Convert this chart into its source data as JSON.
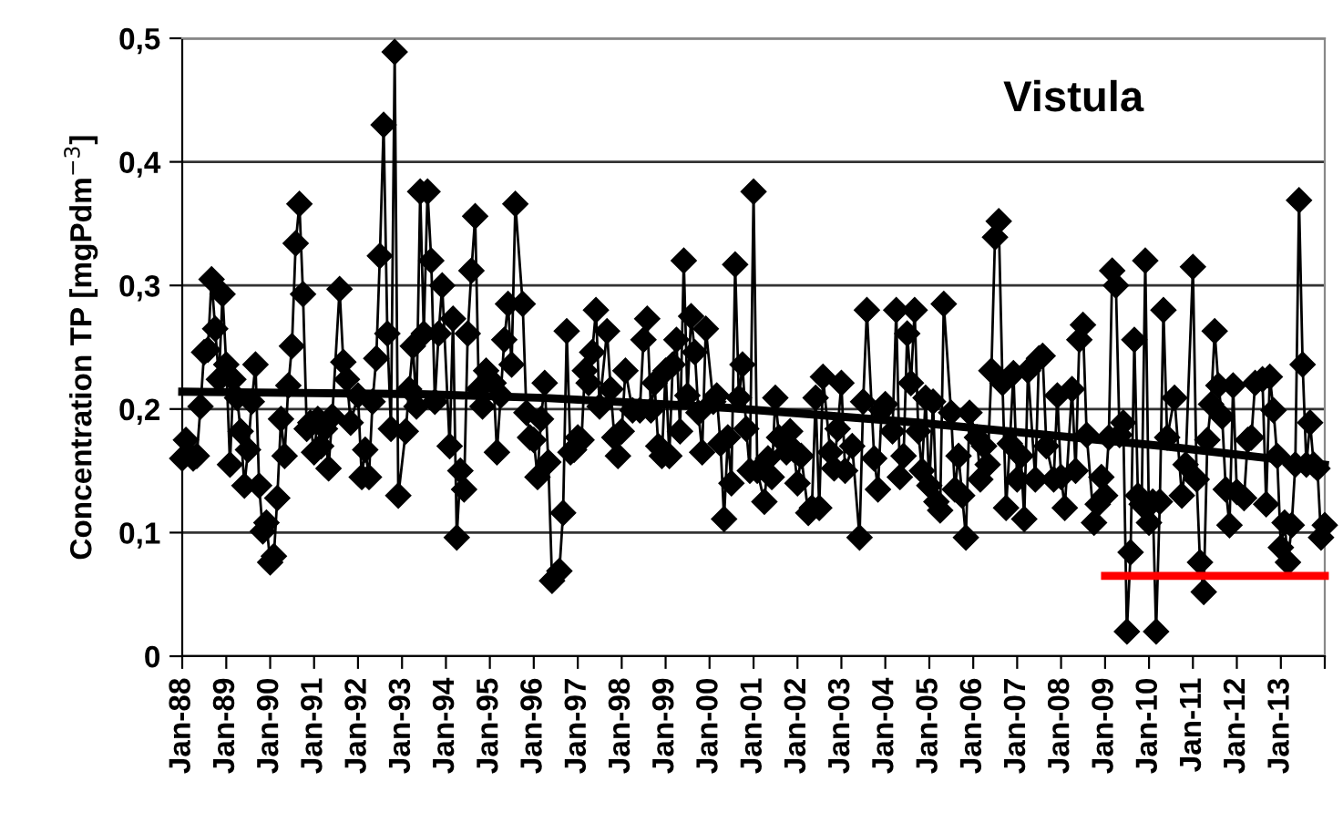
{
  "chart_data": {
    "type": "line",
    "title": "Vistula",
    "ylabel": "Concentration TP [mgPdm$^{−3}$]",
    "xlim": [
      "1988-01",
      "2014-01"
    ],
    "xticks": [
      {
        "value": "1988-01",
        "label": "Jan-88"
      },
      {
        "value": "1989-01",
        "label": "Jan-89"
      },
      {
        "value": "1990-01",
        "label": "Jan-90"
      },
      {
        "value": "1991-01",
        "label": "Jan-91"
      },
      {
        "value": "1992-01",
        "label": "Jan-92"
      },
      {
        "value": "1993-01",
        "label": "Jan-93"
      },
      {
        "value": "1994-01",
        "label": "Jan-94"
      },
      {
        "value": "1995-01",
        "label": "Jan-95"
      },
      {
        "value": "1996-01",
        "label": "Jan-96"
      },
      {
        "value": "1997-01",
        "label": "Jan-97"
      },
      {
        "value": "1998-01",
        "label": "Jan-98"
      },
      {
        "value": "1999-01",
        "label": "Jan-99"
      },
      {
        "value": "2000-01",
        "label": "Jan-00"
      },
      {
        "value": "2001-01",
        "label": "Jan-01"
      },
      {
        "value": "2002-01",
        "label": "Jan-02"
      },
      {
        "value": "2003-01",
        "label": "Jan-03"
      },
      {
        "value": "2004-01",
        "label": "Jan-04"
      },
      {
        "value": "2005-01",
        "label": "Jan-05"
      },
      {
        "value": "2006-01",
        "label": "Jan-06"
      },
      {
        "value": "2007-01",
        "label": "Jan-07"
      },
      {
        "value": "2008-01",
        "label": "Jan-08"
      },
      {
        "value": "2009-01",
        "label": "Jan-09"
      },
      {
        "value": "2010-01",
        "label": "Jan-10"
      },
      {
        "value": "2011-01",
        "label": "Jan-11"
      },
      {
        "value": "2012-01",
        "label": "Jan-12"
      },
      {
        "value": "2013-01",
        "label": "Jan-13"
      },
      {
        "value": "2014-01",
        "label": null
      }
    ],
    "ylim": [
      0,
      0.5
    ],
    "yticks": [
      0,
      {
        "value": 0.1,
        "label": "0,1"
      },
      {
        "value": 0.2,
        "label": "0,2"
      },
      {
        "value": 0.3,
        "label": "0,3"
      },
      {
        "value": 0.4,
        "label": "0,4"
      },
      {
        "value": 0.5,
        "label": "0,5"
      }
    ],
    "grid": "y",
    "legend": false,
    "series": [
      {
        "color": "#000000",
        "marker": "diamond",
        "line_style": "solid",
        "x": [
          "1988-01",
          "1988-02",
          "1988-04",
          "1988-05",
          "1988-06",
          "1988-07",
          "1988-08",
          "1988-09",
          "1988-10",
          "1988-11",
          "1988-12",
          "1989-01",
          "1989-02",
          "1989-03",
          "1989-04",
          "1989-05",
          "1989-06",
          "1989-07",
          "1989-08",
          "1989-09",
          "1989-10",
          "1989-11",
          "1989-12",
          "1990-01",
          "1990-02",
          "1990-03",
          "1990-04",
          "1990-05",
          "1990-06",
          "1990-07",
          "1990-08",
          "1990-09",
          "1990-10",
          "1990-11",
          "1990-12",
          "1991-01",
          "1991-02",
          "1991-03",
          "1991-04",
          "1991-05",
          "1991-06",
          "1991-08",
          "1991-09",
          "1991-10",
          "1991-11",
          "1992-01",
          "1992-02",
          "1992-03",
          "1992-04",
          "1992-05",
          "1992-06",
          "1992-07",
          "1992-08",
          "1992-09",
          "1992-10",
          "1992-11",
          "1992-12",
          "1993-02",
          "1993-03",
          "1993-04",
          "1993-05",
          "1993-06",
          "1993-07",
          "1993-08",
          "1993-09",
          "1993-10",
          "1993-11",
          "1993-12",
          "1994-02",
          "1994-03",
          "1994-04",
          "1994-05",
          "1994-06",
          "1994-07",
          "1994-08",
          "1994-09",
          "1994-10",
          "1994-11",
          "1994-12",
          "1995-02",
          "1995-03",
          "1995-04",
          "1995-05",
          "1995-06",
          "1995-07",
          "1995-08",
          "1995-10",
          "1995-11",
          "1995-12",
          "1996-01",
          "1996-02",
          "1996-03",
          "1996-04",
          "1996-05",
          "1996-06",
          "1996-08",
          "1996-09",
          "1996-10",
          "1996-11",
          "1996-12",
          "1997-01",
          "1997-02",
          "1997-03",
          "1997-04",
          "1997-05",
          "1997-06",
          "1997-07",
          "1997-09",
          "1997-10",
          "1997-11",
          "1997-12",
          "1998-01",
          "1998-02",
          "1998-04",
          "1998-06",
          "1998-07",
          "1998-08",
          "1998-09",
          "1998-10",
          "1998-11",
          "1998-12",
          "1999-01",
          "1999-02",
          "1999-03",
          "1999-04",
          "1999-05",
          "1999-06",
          "1999-07",
          "1999-08",
          "1999-09",
          "1999-10",
          "1999-11",
          "1999-12",
          "2000-02",
          "2000-03",
          "2000-04",
          "2000-05",
          "2000-06",
          "2000-07",
          "2000-08",
          "2000-09",
          "2000-10",
          "2000-11",
          "2000-12",
          "2001-01",
          "2001-02",
          "2001-04",
          "2001-05",
          "2001-06",
          "2001-07",
          "2001-08",
          "2001-10",
          "2001-11",
          "2001-12",
          "2002-01",
          "2002-02",
          "2002-04",
          "2002-05",
          "2002-06",
          "2002-07",
          "2002-08",
          "2002-10",
          "2002-11",
          "2002-12",
          "2003-01",
          "2003-02",
          "2003-04",
          "2003-06",
          "2003-07",
          "2003-08",
          "2003-10",
          "2003-11",
          "2003-12",
          "2004-01",
          "2004-03",
          "2004-04",
          "2004-05",
          "2004-06",
          "2004-07",
          "2004-08",
          "2004-09",
          "2004-10",
          "2004-11",
          "2004-12",
          "2005-01",
          "2005-02",
          "2005-03",
          "2005-04",
          "2005-05",
          "2005-07",
          "2005-08",
          "2005-09",
          "2005-10",
          "2005-11",
          "2005-12",
          "2006-02",
          "2006-03",
          "2006-04",
          "2006-05",
          "2006-06",
          "2006-07",
          "2006-08",
          "2006-09",
          "2006-10",
          "2006-11",
          "2006-12",
          "2007-01",
          "2007-02",
          "2007-03",
          "2007-04",
          "2007-06",
          "2007-07",
          "2007-08",
          "2007-09",
          "2007-11",
          "2007-12",
          "2008-01",
          "2008-02",
          "2008-04",
          "2008-05",
          "2008-06",
          "2008-07",
          "2008-08",
          "2008-10",
          "2008-11",
          "2008-12",
          "2009-01",
          "2009-02",
          "2009-03",
          "2009-04",
          "2009-05",
          "2009-06",
          "2009-07",
          "2009-08",
          "2009-09",
          "2009-10",
          "2009-11",
          "2009-12",
          "2010-01",
          "2010-02",
          "2010-03",
          "2010-04",
          "2010-05",
          "2010-06",
          "2010-08",
          "2010-10",
          "2010-11",
          "2011-01",
          "2011-02",
          "2011-03",
          "2011-04",
          "2011-05",
          "2011-06",
          "2011-07",
          "2011-08",
          "2011-09",
          "2011-10",
          "2011-11",
          "2011-12",
          "2012-01",
          "2012-03",
          "2012-04",
          "2012-05",
          "2012-06",
          "2012-08",
          "2012-09",
          "2012-10",
          "2012-11",
          "2012-12",
          "2013-01",
          "2013-02",
          "2013-03",
          "2013-04",
          "2013-05",
          "2013-06",
          "2013-07",
          "2013-08",
          "2013-09",
          "2013-10",
          "2013-11",
          "2013-12",
          "2014-01"
        ],
        "values": [
          0.16,
          0.175,
          0.16,
          0.162,
          0.202,
          0.246,
          0.248,
          0.305,
          0.265,
          0.224,
          0.293,
          0.236,
          0.155,
          0.224,
          0.209,
          0.182,
          0.138,
          0.167,
          0.206,
          0.236,
          0.138,
          0.101,
          0.108,
          0.076,
          0.081,
          0.128,
          0.192,
          0.162,
          0.219,
          0.251,
          0.334,
          0.366,
          0.293,
          0.184,
          0.189,
          0.165,
          0.192,
          0.17,
          0.184,
          0.152,
          0.194,
          0.297,
          0.238,
          0.224,
          0.189,
          0.211,
          0.145,
          0.167,
          0.145,
          0.206,
          0.241,
          0.324,
          0.43,
          0.261,
          0.184,
          0.489,
          0.13,
          0.182,
          0.216,
          0.251,
          0.202,
          0.376,
          0.261,
          0.376,
          0.32,
          0.206,
          0.261,
          0.3,
          0.17,
          0.273,
          0.096,
          0.15,
          0.135,
          0.261,
          0.312,
          0.356,
          0.216,
          0.202,
          0.231,
          0.221,
          0.165,
          0.211,
          0.256,
          0.285,
          0.236,
          0.366,
          0.285,
          0.197,
          0.177,
          0.175,
          0.145,
          0.192,
          0.221,
          0.157,
          0.061,
          0.069,
          0.116,
          0.263,
          0.165,
          0.167,
          0.177,
          0.175,
          0.231,
          0.221,
          0.246,
          0.28,
          0.202,
          0.263,
          0.216,
          0.177,
          0.162,
          0.182,
          0.231,
          0.199,
          0.199,
          0.256,
          0.273,
          0.199,
          0.221,
          0.17,
          0.162,
          0.231,
          0.162,
          0.236,
          0.256,
          0.182,
          0.32,
          0.211,
          0.275,
          0.246,
          0.197,
          0.165,
          0.265,
          0.206,
          0.211,
          0.172,
          0.111,
          0.177,
          0.14,
          0.317,
          0.209,
          0.236,
          0.184,
          0.15,
          0.376,
          0.15,
          0.125,
          0.16,
          0.145,
          0.209,
          0.177,
          0.165,
          0.182,
          0.167,
          0.14,
          0.162,
          0.116,
          0.12,
          0.209,
          0.12,
          0.226,
          0.165,
          0.152,
          0.184,
          0.221,
          0.15,
          0.17,
          0.096,
          0.206,
          0.28,
          0.16,
          0.135,
          0.199,
          0.204,
          0.182,
          0.28,
          0.145,
          0.162,
          0.261,
          0.221,
          0.28,
          0.182,
          0.15,
          0.209,
          0.138,
          0.206,
          0.125,
          0.118,
          0.285,
          0.197,
          0.135,
          0.162,
          0.13,
          0.096,
          0.197,
          0.177,
          0.143,
          0.17,
          0.155,
          0.231,
          0.339,
          0.352,
          0.221,
          0.12,
          0.172,
          0.229,
          0.143,
          0.162,
          0.111,
          0.231,
          0.143,
          0.241,
          0.243,
          0.17,
          0.143,
          0.211,
          0.145,
          0.12,
          0.216,
          0.15,
          0.256,
          0.268,
          0.179,
          0.108,
          0.123,
          0.145,
          0.13,
          0.177,
          0.312,
          0.3,
          0.179,
          0.189,
          0.02,
          0.084,
          0.256,
          0.13,
          0.123,
          0.32,
          0.108,
          0.125,
          0.02,
          0.125,
          0.28,
          0.177,
          0.209,
          0.13,
          0.155,
          0.315,
          0.143,
          0.076,
          0.052,
          0.175,
          0.204,
          0.263,
          0.219,
          0.194,
          0.135,
          0.106,
          0.219,
          0.133,
          0.128,
          0.175,
          0.177,
          0.221,
          0.224,
          0.123,
          0.226,
          0.199,
          0.162,
          0.088,
          0.108,
          0.076,
          0.106,
          0.155,
          0.369,
          0.236,
          0.155,
          0.189,
          0.155,
          0.152,
          0.096,
          0.106
        ]
      },
      {
        "color": "#000000",
        "marker": "none",
        "line_style": "solid",
        "x": [
          "1988-01",
          "1993-06",
          "1996-04",
          "2000-06",
          "2004-10",
          "2010-05",
          "2014-01"
        ],
        "values": [
          0.214,
          0.212,
          0.209,
          0.201,
          0.189,
          0.17,
          0.155
        ]
      },
      {
        "color": "#ff0000",
        "marker": "none",
        "line_style": "solid",
        "x": [
          "2009-01",
          "2014-01"
        ],
        "values": [
          0.065,
          0.065
        ]
      }
    ]
  }
}
